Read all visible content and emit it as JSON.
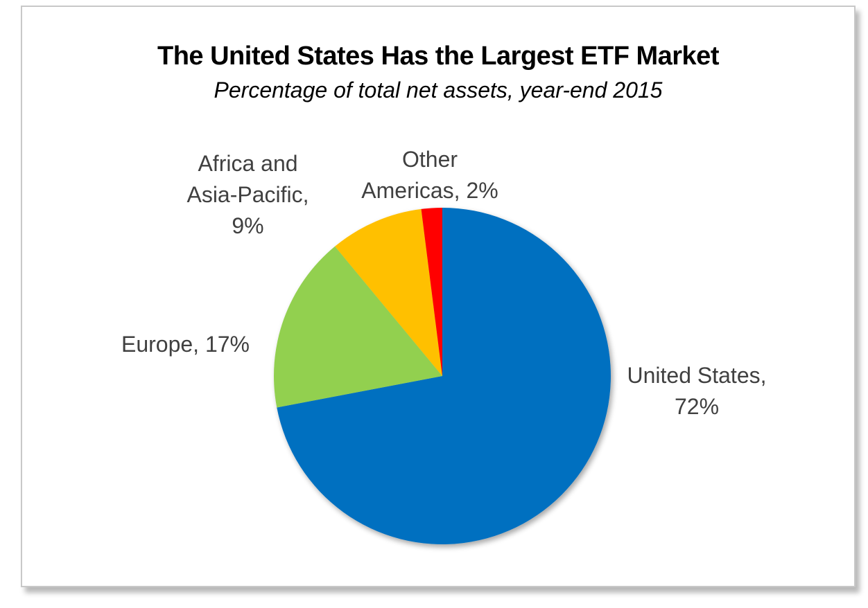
{
  "chart_data": {
    "type": "pie",
    "title": "The United States Has the Largest ETF Market",
    "subtitle": "Percentage of total net assets, year-end 2015",
    "unit": "%",
    "start_angle_deg": 0,
    "direction": "clockwise",
    "slices": [
      {
        "name": "United States",
        "value": 72,
        "color": "#0070C0",
        "label_lines": [
          "United States,",
          "72%"
        ]
      },
      {
        "name": "Europe",
        "value": 17,
        "color": "#92D050",
        "label_lines": [
          "Europe, 17%"
        ]
      },
      {
        "name": "Africa and Asia-Pacific",
        "value": 9,
        "color": "#FFC000",
        "label_lines": [
          "Africa and",
          "Asia-Pacific,",
          "9%"
        ]
      },
      {
        "name": "Other Americas",
        "value": 2,
        "color": "#FF0000",
        "label_lines": [
          "Other",
          "Americas, 2%"
        ]
      }
    ]
  }
}
